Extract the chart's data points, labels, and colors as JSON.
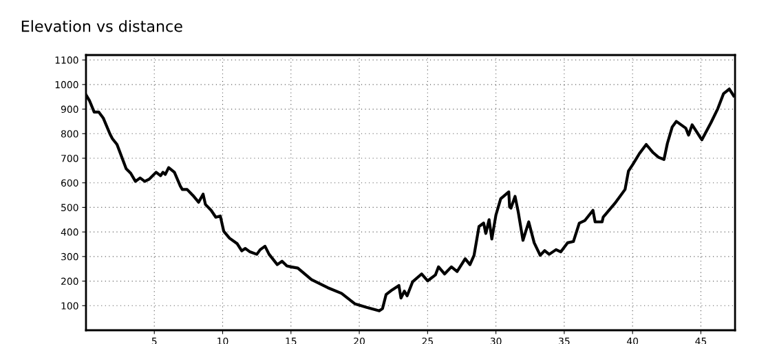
{
  "chart_data": {
    "type": "line",
    "title": "Elevation vs distance",
    "x": [
      0,
      0.25,
      0.6,
      0.93,
      1.26,
      1.76,
      1.93,
      2.27,
      2.94,
      3.27,
      3.62,
      3.96,
      4.3,
      4.63,
      5.13,
      5.46,
      5.63,
      5.8,
      6.05,
      6.47,
      6.9,
      7.05,
      7.4,
      7.82,
      8.24,
      8.57,
      8.74,
      9.16,
      9.5,
      9.83,
      10.08,
      10.5,
      11.07,
      11.4,
      11.66,
      12.0,
      12.5,
      12.75,
      13.1,
      13.4,
      14.0,
      14.35,
      14.7,
      15.0,
      15.5,
      16.5,
      17.7,
      18.7,
      19.7,
      20.54,
      21.46,
      21.7,
      21.96,
      22.4,
      22.9,
      23.05,
      23.3,
      23.5,
      23.9,
      24.56,
      25.0,
      25.57,
      25.8,
      26.24,
      26.74,
      27.16,
      27.75,
      28.1,
      28.4,
      28.76,
      29.1,
      29.26,
      29.5,
      29.7,
      30.0,
      30.35,
      30.94,
      31.0,
      31.1,
      31.4,
      31.64,
      31.98,
      32.4,
      32.8,
      33.24,
      33.57,
      33.9,
      34.4,
      34.75,
      35.25,
      35.67,
      36.1,
      36.5,
      37.1,
      37.26,
      37.77,
      37.85,
      38.7,
      39.45,
      39.7,
      40.03,
      40.5,
      41.0,
      41.5,
      41.9,
      42.3,
      42.55,
      42.9,
      43.2,
      43.9,
      44.1,
      44.36,
      45.07,
      45.74,
      46.24,
      46.66,
      47.08,
      47.4
    ],
    "series": [
      {
        "color": "#000000",
        "values": [
          958,
          935,
          888,
          888,
          864,
          798,
          780,
          756,
          657,
          639,
          606,
          620,
          606,
          615,
          643,
          629,
          643,
          634,
          662,
          643,
          587,
          573,
          573,
          549,
          521,
          554,
          512,
          488,
          460,
          465,
          403,
          375,
          352,
          323,
          333,
          319,
          309,
          328,
          342,
          309,
          267,
          281,
          262,
          258,
          253,
          206,
          173,
          150,
          107,
          93,
          79,
          88,
          145,
          164,
          182,
          131,
          159,
          140,
          197,
          229,
          201,
          225,
          258,
          229,
          258,
          239,
          291,
          267,
          305,
          422,
          436,
          394,
          450,
          371,
          469,
          535,
          563,
          502,
          497,
          545,
          479,
          366,
          441,
          356,
          305,
          324,
          309,
          328,
          319,
          356,
          361,
          436,
          446,
          488,
          441,
          441,
          460,
          516,
          573,
          648,
          676,
          719,
          756,
          723,
          704,
          695,
          761,
          827,
          850,
          822,
          794,
          836,
          775,
          845,
          902,
          963,
          982,
          954
        ]
      }
    ],
    "xlim": [
      0,
      47.5
    ],
    "ylim": [
      0,
      1120
    ],
    "xticks": [
      5,
      10,
      15,
      20,
      25,
      30,
      35,
      40,
      45
    ],
    "yticks": [
      100,
      200,
      300,
      400,
      500,
      600,
      700,
      800,
      900,
      1000,
      1100
    ],
    "grid": true,
    "line_style": "solid",
    "marker": "none"
  }
}
